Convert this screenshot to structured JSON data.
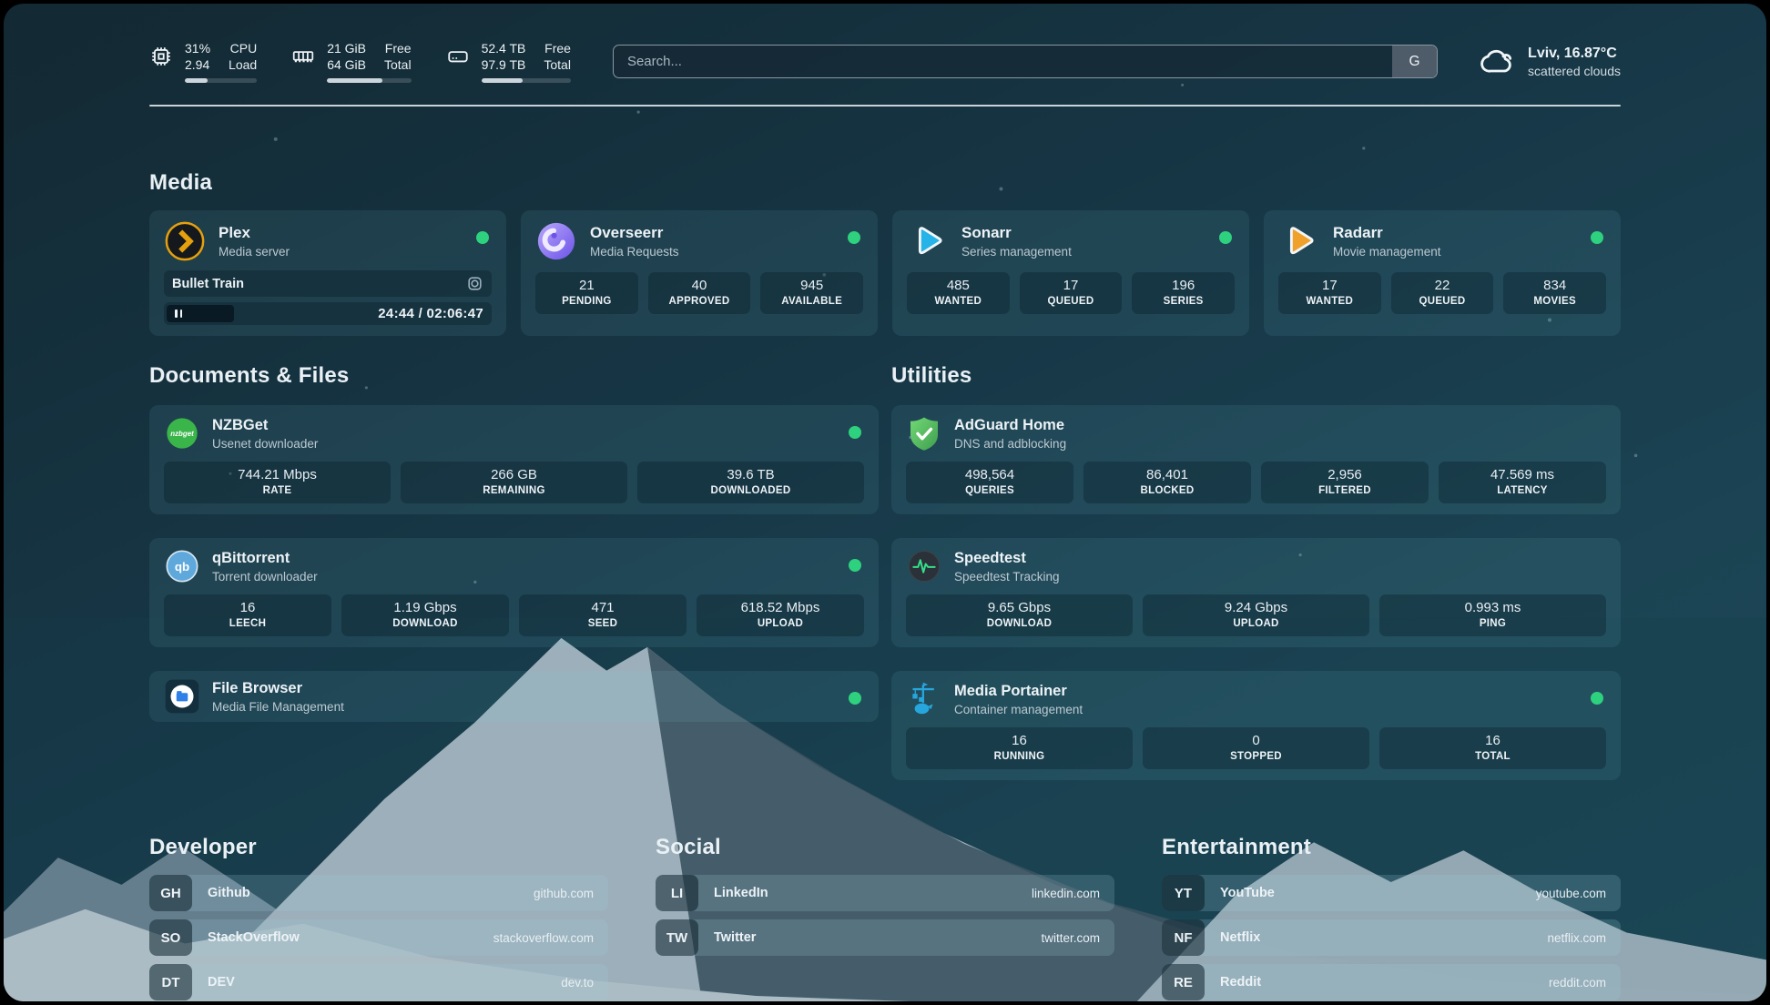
{
  "header": {
    "metrics": [
      {
        "icon": "cpu-icon",
        "value1": "31%",
        "value2": "2.94",
        "label1": "CPU",
        "label2": "Load",
        "progress": 31
      },
      {
        "icon": "memory-icon",
        "value1": "21 GiB",
        "value2": "64 GiB",
        "label1": "Free",
        "label2": "Total",
        "progress": 66
      },
      {
        "icon": "disk-icon",
        "value1": "52.4 TB",
        "value2": "97.9 TB",
        "label1": "Free",
        "label2": "Total",
        "progress": 46
      }
    ],
    "search": {
      "placeholder": "Search...",
      "engine_button": "G"
    },
    "weather": {
      "location_temp": "Lviv, 16.87°C",
      "condition": "scattered clouds"
    }
  },
  "media": {
    "title": "Media",
    "plex": {
      "title": "Plex",
      "subtitle": "Media server",
      "now_playing": "Bullet Train",
      "time": "24:44 / 02:06:47"
    },
    "overseerr": {
      "title": "Overseerr",
      "subtitle": "Media Requests",
      "stats": [
        {
          "value": "21",
          "label": "PENDING"
        },
        {
          "value": "40",
          "label": "APPROVED"
        },
        {
          "value": "945",
          "label": "AVAILABLE"
        }
      ]
    },
    "sonarr": {
      "title": "Sonarr",
      "subtitle": "Series management",
      "stats": [
        {
          "value": "485",
          "label": "WANTED"
        },
        {
          "value": "17",
          "label": "QUEUED"
        },
        {
          "value": "196",
          "label": "SERIES"
        }
      ]
    },
    "radarr": {
      "title": "Radarr",
      "subtitle": "Movie management",
      "stats": [
        {
          "value": "17",
          "label": "WANTED"
        },
        {
          "value": "22",
          "label": "QUEUED"
        },
        {
          "value": "834",
          "label": "MOVIES"
        }
      ]
    }
  },
  "documents": {
    "title": "Documents & Files",
    "nzbget": {
      "title": "NZBGet",
      "subtitle": "Usenet downloader",
      "stats": [
        {
          "value": "744.21 Mbps",
          "label": "RATE"
        },
        {
          "value": "266 GB",
          "label": "REMAINING"
        },
        {
          "value": "39.6 TB",
          "label": "DOWNLOADED"
        }
      ]
    },
    "qbittorrent": {
      "title": "qBittorrent",
      "subtitle": "Torrent downloader",
      "stats": [
        {
          "value": "16",
          "label": "LEECH"
        },
        {
          "value": "1.19 Gbps",
          "label": "DOWNLOAD"
        },
        {
          "value": "471",
          "label": "SEED"
        },
        {
          "value": "618.52 Mbps",
          "label": "UPLOAD"
        }
      ]
    },
    "filebrowser": {
      "title": "File Browser",
      "subtitle": "Media File Management"
    }
  },
  "utilities": {
    "title": "Utilities",
    "adguard": {
      "title": "AdGuard Home",
      "subtitle": "DNS and adblocking",
      "stats": [
        {
          "value": "498,564",
          "label": "QUERIES"
        },
        {
          "value": "86,401",
          "label": "BLOCKED"
        },
        {
          "value": "2,956",
          "label": "FILTERED"
        },
        {
          "value": "47.569 ms",
          "label": "LATENCY"
        }
      ]
    },
    "speedtest": {
      "title": "Speedtest",
      "subtitle": "Speedtest Tracking",
      "stats": [
        {
          "value": "9.65 Gbps",
          "label": "DOWNLOAD"
        },
        {
          "value": "9.24 Gbps",
          "label": "UPLOAD"
        },
        {
          "value": "0.993 ms",
          "label": "PING"
        }
      ]
    },
    "portainer": {
      "title": "Media Portainer",
      "subtitle": "Container management",
      "stats": [
        {
          "value": "16",
          "label": "RUNNING"
        },
        {
          "value": "0",
          "label": "STOPPED"
        },
        {
          "value": "16",
          "label": "TOTAL"
        }
      ]
    }
  },
  "bookmarks": {
    "developer": {
      "title": "Developer",
      "items": [
        {
          "abbr": "GH",
          "name": "Github",
          "url": "github.com"
        },
        {
          "abbr": "SO",
          "name": "StackOverflow",
          "url": "stackoverflow.com"
        },
        {
          "abbr": "DT",
          "name": "DEV",
          "url": "dev.to"
        }
      ]
    },
    "social": {
      "title": "Social",
      "items": [
        {
          "abbr": "LI",
          "name": "LinkedIn",
          "url": "linkedin.com"
        },
        {
          "abbr": "TW",
          "name": "Twitter",
          "url": "twitter.com"
        }
      ]
    },
    "entertainment": {
      "title": "Entertainment",
      "items": [
        {
          "abbr": "YT",
          "name": "YouTube",
          "url": "youtube.com"
        },
        {
          "abbr": "NF",
          "name": "Netflix",
          "url": "netflix.com"
        },
        {
          "abbr": "RE",
          "name": "Reddit",
          "url": "reddit.com"
        }
      ]
    }
  },
  "colors": {
    "status_online": "#2ed17e",
    "snow_fill": "#c2cfd9",
    "sky_top": "#132933",
    "sky_bottom": "#1d4856"
  }
}
